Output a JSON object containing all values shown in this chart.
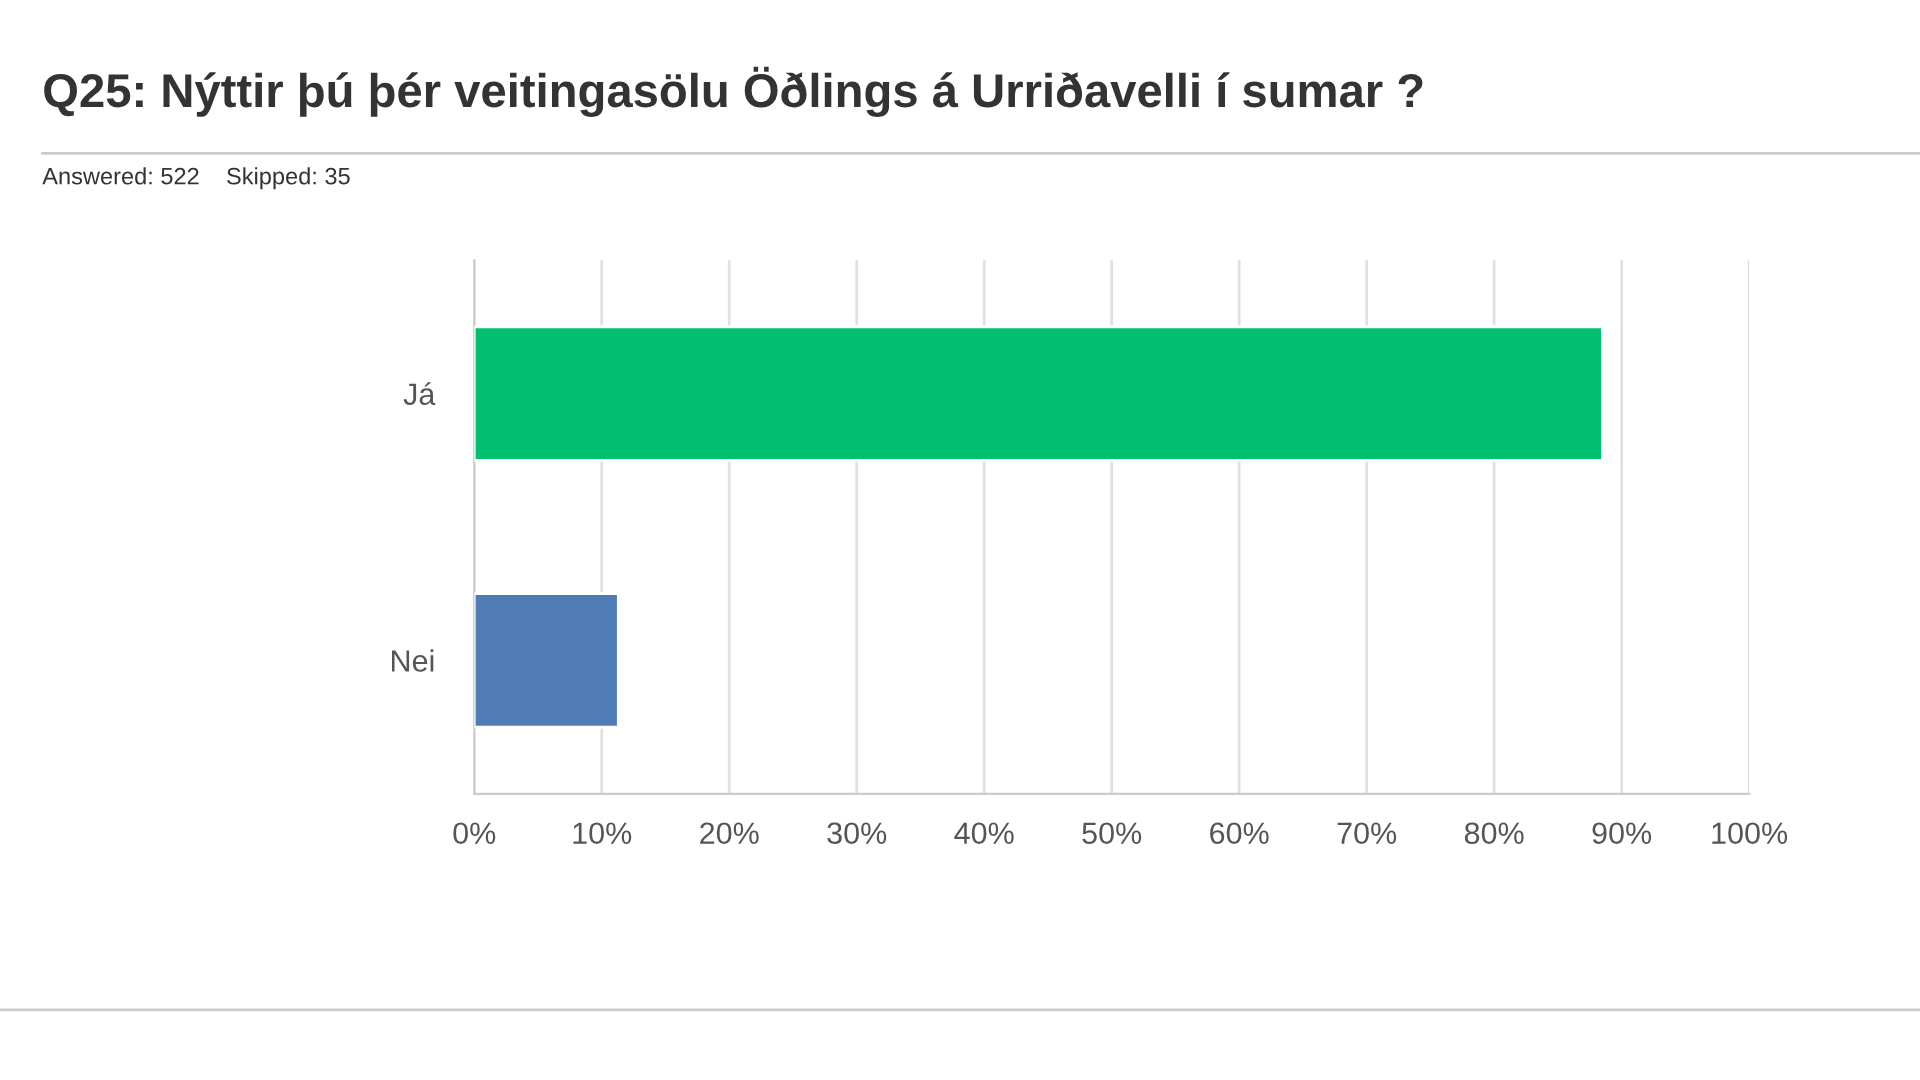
{
  "chart_data": {
    "type": "bar",
    "orientation": "horizontal",
    "title": "Q25: Nýttir þú þér veitingasölu Öðlings á Urriðavelli í sumar ?",
    "subtitle": "Answered: 522    Skipped: 35",
    "categories": [
      "Já",
      "Nei"
    ],
    "values": [
      88.5,
      11.3
    ],
    "colors": [
      "#00bf6f",
      "#507cb6"
    ],
    "xlim": [
      0,
      100
    ],
    "xticks": [
      {
        "value": 0,
        "label": "0%"
      },
      {
        "value": 10,
        "label": "10%"
      },
      {
        "value": 20,
        "label": "20%"
      },
      {
        "value": 30,
        "label": "30%"
      },
      {
        "value": 40,
        "label": "40%"
      },
      {
        "value": 50,
        "label": "50%"
      },
      {
        "value": 60,
        "label": "60%"
      },
      {
        "value": 70,
        "label": "70%"
      },
      {
        "value": 80,
        "label": "80%"
      },
      {
        "value": 90,
        "label": "90%"
      },
      {
        "value": 100,
        "label": "100%"
      }
    ],
    "grid": "x",
    "legend": false
  }
}
